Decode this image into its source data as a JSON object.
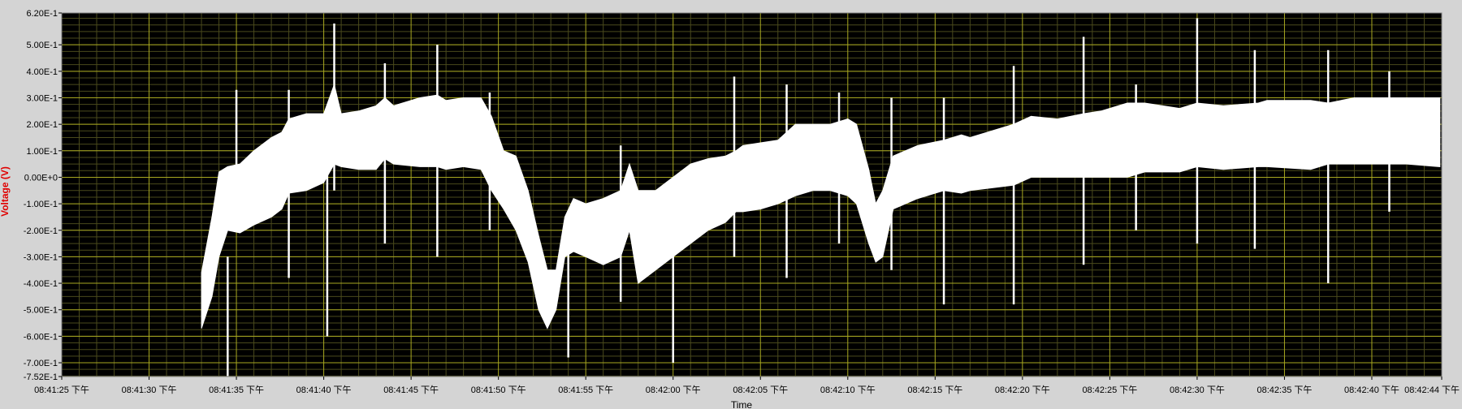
{
  "chart_data": {
    "type": "line",
    "ylabel": "Voltage (V)",
    "xlabel": "Time",
    "ylim": [
      -0.752,
      0.62
    ],
    "xlim": [
      "08:41:25",
      "08:42:44"
    ],
    "y_ticks": [
      {
        "value": 0.62,
        "label": "6.20E-1"
      },
      {
        "value": 0.5,
        "label": "5.00E-1"
      },
      {
        "value": 0.4,
        "label": "4.00E-1"
      },
      {
        "value": 0.3,
        "label": "3.00E-1"
      },
      {
        "value": 0.2,
        "label": "2.00E-1"
      },
      {
        "value": 0.1,
        "label": "1.00E-1"
      },
      {
        "value": 0.0,
        "label": "0.00E+0"
      },
      {
        "value": -0.1,
        "label": "-1.00E-1"
      },
      {
        "value": -0.2,
        "label": "-2.00E-1"
      },
      {
        "value": -0.3,
        "label": "-3.00E-1"
      },
      {
        "value": -0.4,
        "label": "-4.00E-1"
      },
      {
        "value": -0.5,
        "label": "-5.00E-1"
      },
      {
        "value": -0.6,
        "label": "-6.00E-1"
      },
      {
        "value": -0.7,
        "label": "-7.00E-1"
      },
      {
        "value": -0.752,
        "label": "-7.52E-1"
      }
    ],
    "x_ticks": [
      {
        "time": "08:41:25",
        "label": "08:41:25 下午"
      },
      {
        "time": "08:41:30",
        "label": "08:41:30 下午"
      },
      {
        "time": "08:41:35",
        "label": "08:41:35 下午"
      },
      {
        "time": "08:41:40",
        "label": "08:41:40 下午"
      },
      {
        "time": "08:41:45",
        "label": "08:41:45 下午"
      },
      {
        "time": "08:41:50",
        "label": "08:41:50 下午"
      },
      {
        "time": "08:41:55",
        "label": "08:41:55 下午"
      },
      {
        "time": "08:42:00",
        "label": "08:42:00 下午"
      },
      {
        "time": "08:42:05",
        "label": "08:42:05 下午"
      },
      {
        "time": "08:42:10",
        "label": "08:42:10 下午"
      },
      {
        "time": "08:42:15",
        "label": "08:42:15 下午"
      },
      {
        "time": "08:42:20",
        "label": "08:42:20 下午"
      },
      {
        "time": "08:42:25",
        "label": "08:42:25 下午"
      },
      {
        "time": "08:42:30",
        "label": "08:42:30 下午"
      },
      {
        "time": "08:42:35",
        "label": "08:42:35 下午"
      },
      {
        "time": "08:42:40",
        "label": "08:42:40 下午"
      },
      {
        "time": "08:42:44",
        "label": "08:42:44 下午"
      }
    ],
    "grid": true,
    "series": [
      {
        "color": "#ffffff",
        "band": [
          {
            "t": "08:41:33.0",
            "lo": -0.57,
            "hi": -0.36
          },
          {
            "t": "08:41:33.6",
            "lo": -0.45,
            "hi": -0.15
          },
          {
            "t": "08:41:34.0",
            "lo": -0.3,
            "hi": 0.02
          },
          {
            "t": "08:41:34.5",
            "lo": -0.2,
            "hi": 0.04
          },
          {
            "t": "08:41:35.2",
            "lo": -0.21,
            "hi": 0.05
          },
          {
            "t": "08:41:36.0",
            "lo": -0.18,
            "hi": 0.1
          },
          {
            "t": "08:41:37.0",
            "lo": -0.15,
            "hi": 0.15
          },
          {
            "t": "08:41:37.6",
            "lo": -0.12,
            "hi": 0.17
          },
          {
            "t": "08:41:38.0",
            "lo": -0.06,
            "hi": 0.22
          },
          {
            "t": "08:41:39.0",
            "lo": -0.05,
            "hi": 0.24
          },
          {
            "t": "08:41:40.0",
            "lo": -0.02,
            "hi": 0.24
          },
          {
            "t": "08:41:40.6",
            "lo": 0.05,
            "hi": 0.35
          },
          {
            "t": "08:41:41.0",
            "lo": 0.04,
            "hi": 0.24
          },
          {
            "t": "08:41:42.0",
            "lo": 0.03,
            "hi": 0.25
          },
          {
            "t": "08:41:43.0",
            "lo": 0.03,
            "hi": 0.27
          },
          {
            "t": "08:41:43.5",
            "lo": 0.07,
            "hi": 0.3
          },
          {
            "t": "08:41:44.0",
            "lo": 0.05,
            "hi": 0.27
          },
          {
            "t": "08:41:45.5",
            "lo": 0.04,
            "hi": 0.3
          },
          {
            "t": "08:41:46.5",
            "lo": 0.04,
            "hi": 0.31
          },
          {
            "t": "08:41:47.0",
            "lo": 0.03,
            "hi": 0.29
          },
          {
            "t": "08:41:48.0",
            "lo": 0.04,
            "hi": 0.3
          },
          {
            "t": "08:41:49.0",
            "lo": 0.03,
            "hi": 0.3
          },
          {
            "t": "08:41:49.6",
            "lo": -0.05,
            "hi": 0.23
          },
          {
            "t": "08:41:50.3",
            "lo": -0.12,
            "hi": 0.1
          },
          {
            "t": "08:41:51.0",
            "lo": -0.2,
            "hi": 0.08
          },
          {
            "t": "08:41:51.7",
            "lo": -0.32,
            "hi": -0.05
          },
          {
            "t": "08:41:52.3",
            "lo": -0.5,
            "hi": -0.22
          },
          {
            "t": "08:41:52.8",
            "lo": -0.57,
            "hi": -0.35
          },
          {
            "t": "08:41:53.3",
            "lo": -0.5,
            "hi": -0.35
          },
          {
            "t": "08:41:53.8",
            "lo": -0.3,
            "hi": -0.15
          },
          {
            "t": "08:41:54.3",
            "lo": -0.28,
            "hi": -0.08
          },
          {
            "t": "08:41:55.0",
            "lo": -0.3,
            "hi": -0.1
          },
          {
            "t": "08:41:56.0",
            "lo": -0.33,
            "hi": -0.08
          },
          {
            "t": "08:41:57.0",
            "lo": -0.3,
            "hi": -0.05
          },
          {
            "t": "08:41:57.5",
            "lo": -0.2,
            "hi": 0.05
          },
          {
            "t": "08:41:58.0",
            "lo": -0.4,
            "hi": -0.05
          },
          {
            "t": "08:41:59.0",
            "lo": -0.35,
            "hi": -0.05
          },
          {
            "t": "08:42:00.0",
            "lo": -0.3,
            "hi": 0.0
          },
          {
            "t": "08:42:01.0",
            "lo": -0.25,
            "hi": 0.05
          },
          {
            "t": "08:42:02.0",
            "lo": -0.2,
            "hi": 0.07
          },
          {
            "t": "08:42:03.0",
            "lo": -0.17,
            "hi": 0.08
          },
          {
            "t": "08:42:03.6",
            "lo": -0.13,
            "hi": 0.1
          },
          {
            "t": "08:42:04.0",
            "lo": -0.13,
            "hi": 0.12
          },
          {
            "t": "08:42:05.0",
            "lo": -0.12,
            "hi": 0.13
          },
          {
            "t": "08:42:06.0",
            "lo": -0.1,
            "hi": 0.14
          },
          {
            "t": "08:42:07.0",
            "lo": -0.07,
            "hi": 0.2
          },
          {
            "t": "08:42:08.0",
            "lo": -0.05,
            "hi": 0.2
          },
          {
            "t": "08:42:09.0",
            "lo": -0.05,
            "hi": 0.2
          },
          {
            "t": "08:42:10.0",
            "lo": -0.07,
            "hi": 0.22
          },
          {
            "t": "08:42:10.5",
            "lo": -0.1,
            "hi": 0.2
          },
          {
            "t": "08:42:11.2",
            "lo": -0.25,
            "hi": 0.03
          },
          {
            "t": "08:42:11.6",
            "lo": -0.32,
            "hi": -0.1
          },
          {
            "t": "08:42:12.0",
            "lo": -0.3,
            "hi": -0.05
          },
          {
            "t": "08:42:12.6",
            "lo": -0.12,
            "hi": 0.08
          },
          {
            "t": "08:42:14.0",
            "lo": -0.08,
            "hi": 0.12
          },
          {
            "t": "08:42:15.5",
            "lo": -0.05,
            "hi": 0.14
          },
          {
            "t": "08:42:16.5",
            "lo": -0.06,
            "hi": 0.16
          },
          {
            "t": "08:42:17.0",
            "lo": -0.05,
            "hi": 0.15
          },
          {
            "t": "08:42:19.5",
            "lo": -0.03,
            "hi": 0.2
          },
          {
            "t": "08:42:20.5",
            "lo": 0.0,
            "hi": 0.23
          },
          {
            "t": "08:42:22.0",
            "lo": 0.0,
            "hi": 0.22
          },
          {
            "t": "08:42:23.5",
            "lo": 0.0,
            "hi": 0.24
          },
          {
            "t": "08:42:24.5",
            "lo": 0.0,
            "hi": 0.25
          },
          {
            "t": "08:42:26.0",
            "lo": 0.0,
            "hi": 0.28
          },
          {
            "t": "08:42:27.0",
            "lo": 0.02,
            "hi": 0.28
          },
          {
            "t": "08:42:29.0",
            "lo": 0.02,
            "hi": 0.26
          },
          {
            "t": "08:42:30.0",
            "lo": 0.04,
            "hi": 0.28
          },
          {
            "t": "08:42:31.5",
            "lo": 0.03,
            "hi": 0.27
          },
          {
            "t": "08:42:33.5",
            "lo": 0.04,
            "hi": 0.28
          },
          {
            "t": "08:42:34.0",
            "lo": 0.04,
            "hi": 0.29
          },
          {
            "t": "08:42:36.5",
            "lo": 0.03,
            "hi": 0.29
          },
          {
            "t": "08:42:37.5",
            "lo": 0.05,
            "hi": 0.28
          },
          {
            "t": "08:42:39.0",
            "lo": 0.05,
            "hi": 0.3
          },
          {
            "t": "08:42:40.5",
            "lo": 0.05,
            "hi": 0.3
          },
          {
            "t": "08:42:42.0",
            "lo": 0.05,
            "hi": 0.3
          },
          {
            "t": "08:42:43.9",
            "lo": 0.04,
            "hi": 0.3
          }
        ],
        "spikes": [
          {
            "t": "08:41:34.5",
            "lo": -0.75,
            "hi": -0.3
          },
          {
            "t": "08:41:35.0",
            "lo": -0.2,
            "hi": 0.33
          },
          {
            "t": "08:41:38.0",
            "lo": -0.38,
            "hi": 0.33
          },
          {
            "t": "08:41:40.2",
            "lo": -0.6,
            "hi": 0.2
          },
          {
            "t": "08:41:40.6",
            "lo": -0.05,
            "hi": 0.58
          },
          {
            "t": "08:41:43.5",
            "lo": -0.25,
            "hi": 0.43
          },
          {
            "t": "08:41:46.5",
            "lo": -0.3,
            "hi": 0.5
          },
          {
            "t": "08:41:49.5",
            "lo": -0.2,
            "hi": 0.32
          },
          {
            "t": "08:41:54.0",
            "lo": -0.68,
            "hi": -0.2
          },
          {
            "t": "08:41:57.0",
            "lo": -0.47,
            "hi": 0.12
          },
          {
            "t": "08:42:00.0",
            "lo": -0.7,
            "hi": -0.2
          },
          {
            "t": "08:42:03.5",
            "lo": -0.3,
            "hi": 0.38
          },
          {
            "t": "08:42:06.5",
            "lo": -0.38,
            "hi": 0.35
          },
          {
            "t": "08:42:09.5",
            "lo": -0.25,
            "hi": 0.32
          },
          {
            "t": "08:42:12.5",
            "lo": -0.35,
            "hi": 0.3
          },
          {
            "t": "08:42:15.5",
            "lo": -0.48,
            "hi": 0.3
          },
          {
            "t": "08:42:19.5",
            "lo": -0.48,
            "hi": 0.42
          },
          {
            "t": "08:42:23.5",
            "lo": -0.33,
            "hi": 0.53
          },
          {
            "t": "08:42:26.5",
            "lo": -0.2,
            "hi": 0.35
          },
          {
            "t": "08:42:30.0",
            "lo": -0.25,
            "hi": 0.6
          },
          {
            "t": "08:42:33.3",
            "lo": -0.27,
            "hi": 0.48
          },
          {
            "t": "08:42:37.5",
            "lo": -0.4,
            "hi": 0.48
          },
          {
            "t": "08:42:41.0",
            "lo": -0.13,
            "hi": 0.4
          }
        ]
      }
    ]
  }
}
